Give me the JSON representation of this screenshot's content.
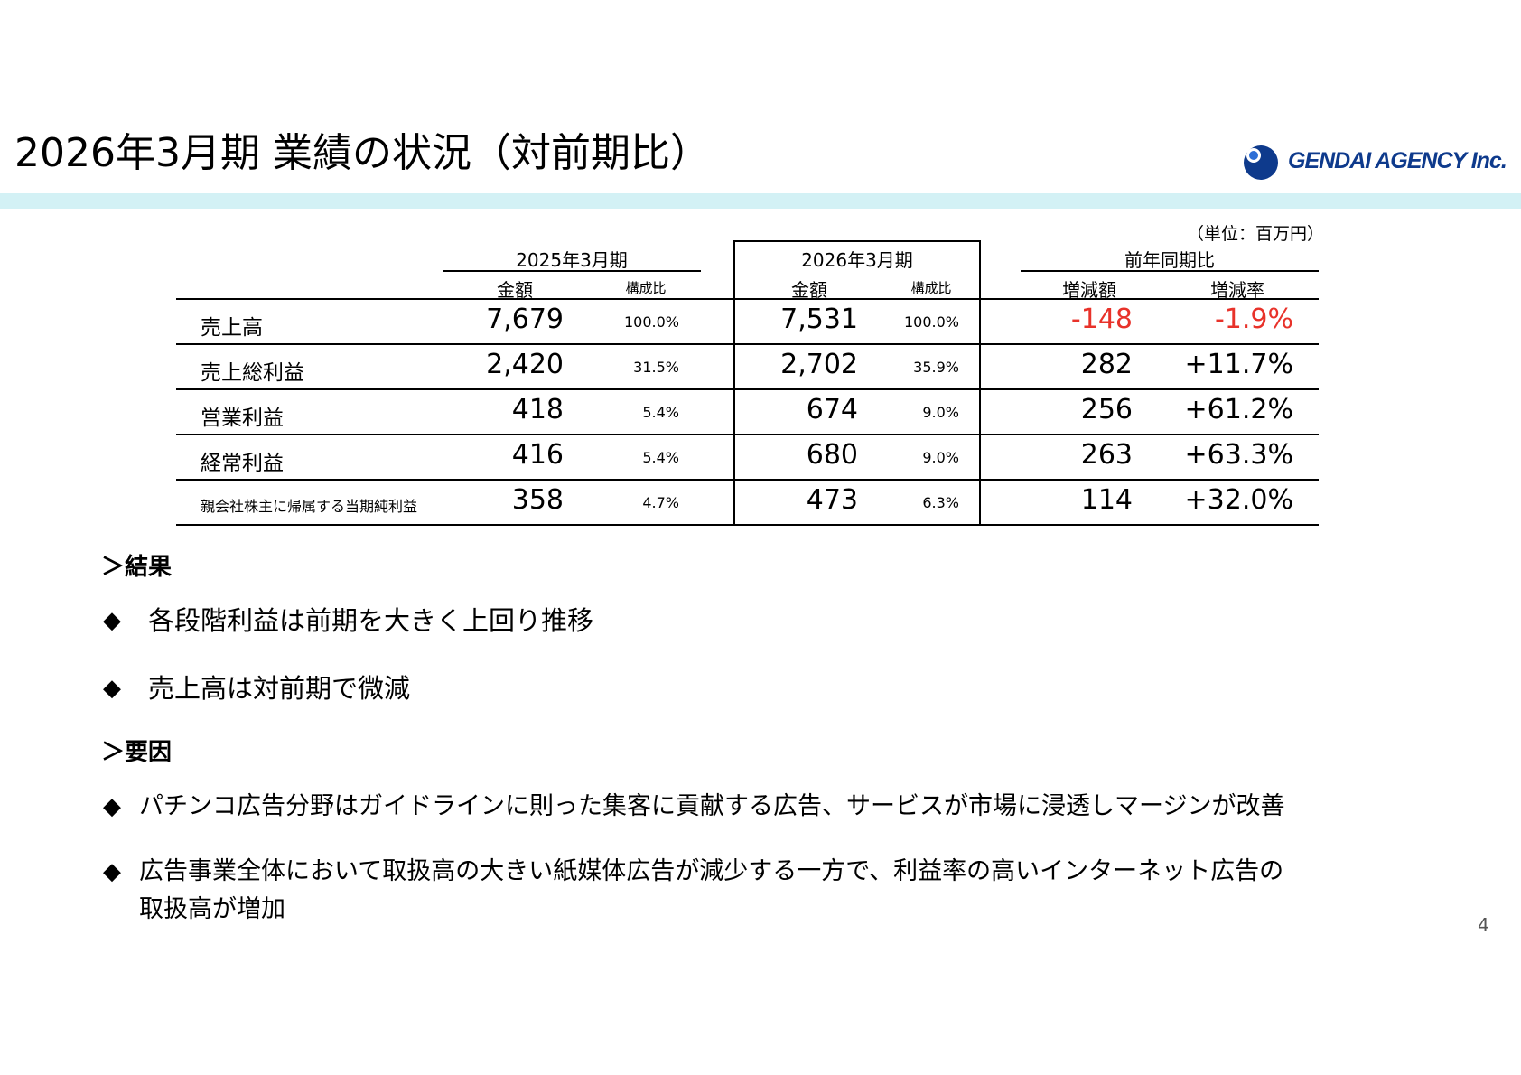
{
  "title": "2026年3月期 業績の状況（対前期比）",
  "logo": {
    "text": "GENDAI AGENCY Inc.",
    "color": "#0e3a8c"
  },
  "unit_note": "（単位：百万円）",
  "table": {
    "group_headers": [
      "2025年3月期",
      "2026年3月期",
      "前年同期比"
    ],
    "sub_headers": [
      "金額",
      "構成比",
      "金額",
      "構成比",
      "増減額",
      "増減率"
    ],
    "rows": [
      {
        "label": "売上高",
        "fy25_amount": "7,679",
        "fy25_ratio": "100.0%",
        "fy26_amount": "7,531",
        "fy26_ratio": "100.0%",
        "change": "-148",
        "change_rate": "-1.9%"
      },
      {
        "label": "売上総利益",
        "fy25_amount": "2,420",
        "fy25_ratio": "31.5%",
        "fy26_amount": "2,702",
        "fy26_ratio": "35.9%",
        "change": "282",
        "change_rate": "+11.7%"
      },
      {
        "label": "営業利益",
        "fy25_amount": "418",
        "fy25_ratio": "5.4%",
        "fy26_amount": "674",
        "fy26_ratio": "9.0%",
        "change": "256",
        "change_rate": "+61.2%"
      },
      {
        "label": "経常利益",
        "fy25_amount": "416",
        "fy25_ratio": "5.4%",
        "fy26_amount": "680",
        "fy26_ratio": "9.0%",
        "change": "263",
        "change_rate": "+63.3%"
      },
      {
        "label": "親会社株主に帰属する当期純利益",
        "fy25_amount": "358",
        "fy25_ratio": "4.7%",
        "fy26_amount": "473",
        "fy26_ratio": "6.3%",
        "change": "114",
        "change_rate": "+32.0%"
      }
    ],
    "negative_color": "#e8322a"
  },
  "results": {
    "heading": "＞結果",
    "bullets": [
      "各段階利益は前期を大きく上回り推移",
      "売上高は対前期で微減"
    ]
  },
  "factors": {
    "heading": "＞要因",
    "bullets": [
      "パチンコ広告分野はガイドラインに則った集客に貢献する広告、サービスが市場に浸透しマージンが改善",
      "広告事業全体において取扱高の大きい紙媒体広告が減少する一方で、利益率の高いインターネット広告の",
      "取扱高が増加"
    ]
  },
  "bullet_mark": "◆",
  "page_number": "4",
  "band_color": "#d3f1f5"
}
